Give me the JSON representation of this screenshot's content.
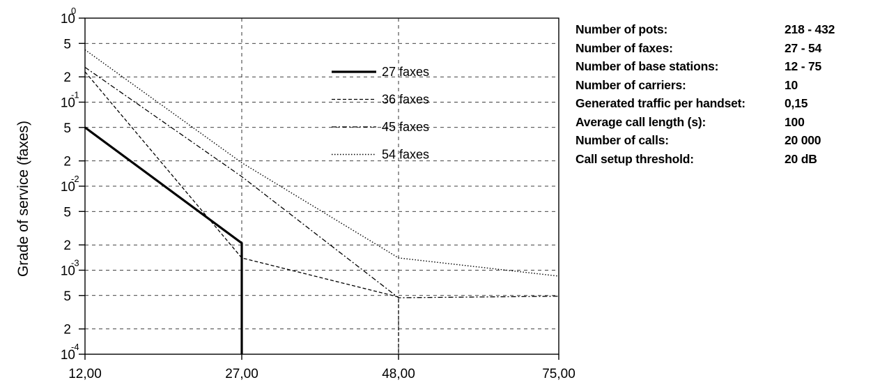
{
  "chart_data": {
    "type": "line",
    "title": "",
    "xlabel": "",
    "ylabel": "Grade of service (faxes)",
    "yscale": "log",
    "ylim": [
      0.0001,
      1
    ],
    "xlim": [
      12,
      75
    ],
    "grid": true,
    "legend_position": "top-center",
    "x": [
      12,
      27,
      48,
      75
    ],
    "x_tick_labels": [
      "12,00",
      "27,00",
      "48,00",
      "75,00"
    ],
    "y_decades": [
      {
        "exp": "0",
        "value": 1
      },
      {
        "exp": "-1",
        "value": 0.1
      },
      {
        "exp": "-2",
        "value": 0.01
      },
      {
        "exp": "-3",
        "value": 0.001
      },
      {
        "exp": "-4",
        "value": 0.0001
      }
    ],
    "y_minor_labels": [
      "5",
      "2"
    ],
    "series": [
      {
        "name": "27 faxes",
        "style": "solid-bold",
        "values": [
          0.05,
          0.0021,
          null,
          null
        ],
        "drop_to_min_at": 27
      },
      {
        "name": "36 faxes",
        "style": "dashed",
        "values": [
          0.23,
          0.0014,
          0.00048,
          null
        ],
        "drop_to_min_at": 48
      },
      {
        "name": "45 faxes",
        "style": "dash-dot",
        "values": [
          0.26,
          0.013,
          0.00047,
          0.00049
        ]
      },
      {
        "name": "54 faxes",
        "style": "dotted",
        "values": [
          0.42,
          0.019,
          0.0014,
          0.00085
        ]
      }
    ]
  },
  "parameters": [
    {
      "label": "Number of pots:",
      "value": "218 - 432"
    },
    {
      "label": "Number of faxes:",
      "value": "27 - 54"
    },
    {
      "label": "Number of base stations:",
      "value": "12 - 75"
    },
    {
      "label": "Number of carriers:",
      "value": "10"
    },
    {
      "label": "Generated traffic per handset:",
      "value": "0,15"
    },
    {
      "label": "Average call length (s):",
      "value": "100"
    },
    {
      "label": "Number of calls:",
      "value": "20 000"
    },
    {
      "label": "Call setup threshold:",
      "value": "20 dB"
    }
  ]
}
